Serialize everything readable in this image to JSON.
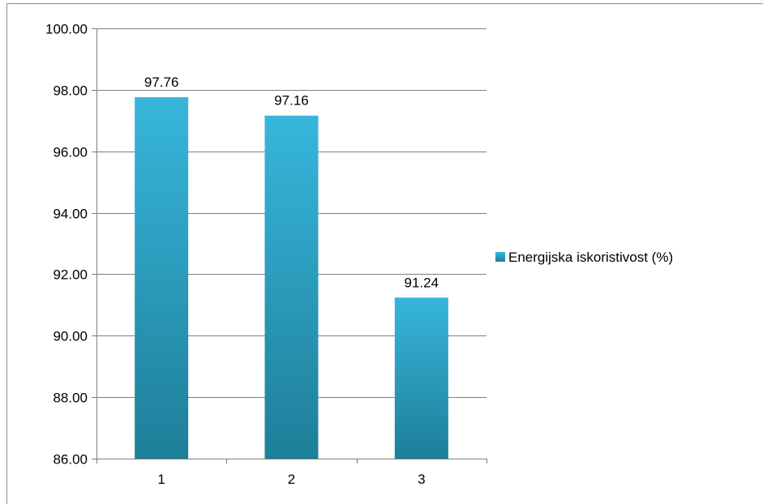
{
  "chart_data": {
    "type": "bar",
    "categories": [
      "1",
      "2",
      "3"
    ],
    "series": [
      {
        "name": "Energijska iskoristivost (%)",
        "values": [
          97.76,
          97.16,
          91.24
        ]
      }
    ],
    "data_labels": [
      "97.76",
      "97.16",
      "91.24"
    ],
    "ylim": [
      86,
      100
    ],
    "y_ticks": [
      86,
      88,
      90,
      92,
      94,
      96,
      98,
      100
    ],
    "y_tick_labels": [
      "86.00",
      "88.00",
      "90.00",
      "92.00",
      "94.00",
      "96.00",
      "98.00",
      "100.00"
    ],
    "grid": true,
    "legend_position": "right",
    "colors": {
      "bar_top": "#38B6DC",
      "bar_bottom": "#1E7F99",
      "grid": "#7f7f7f",
      "axis": "#7f7f7f",
      "frame": "#8c8c8c"
    }
  }
}
